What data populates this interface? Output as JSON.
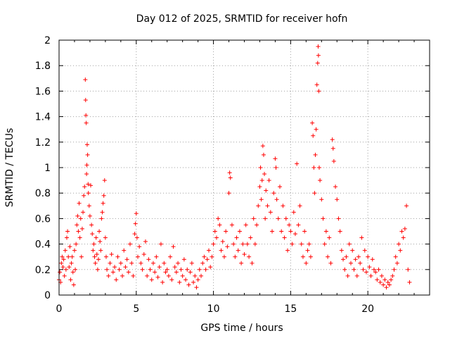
{
  "chart_data": {
    "type": "scatter",
    "title": "Day 012 of 2025, SRMTID for receiver hofn",
    "xlabel": "GPS time / hours",
    "ylabel": "SRMTID / TECUs",
    "xlim": [
      0,
      24
    ],
    "ylim": [
      0,
      2
    ],
    "xticks": [
      0,
      5,
      10,
      15,
      20
    ],
    "xtick_labels": [
      "0",
      "5",
      "10",
      "15",
      "20"
    ],
    "yticks": [
      0,
      0.2,
      0.4,
      0.6,
      0.8,
      1,
      1.2,
      1.4,
      1.6,
      1.8,
      2
    ],
    "ytick_labels": [
      "0",
      "0.2",
      "0.4",
      "0.6",
      "0.8",
      "1",
      "1.2",
      "1.4",
      "1.6",
      "1.8",
      "2"
    ],
    "grid": true,
    "marker": "plus",
    "color": "#ff0000",
    "series": [
      {
        "name": "SRMTID",
        "points": [
          [
            0.0,
            0.12
          ],
          [
            0.05,
            0.18
          ],
          [
            0.1,
            0.1
          ],
          [
            0.15,
            0.25
          ],
          [
            0.2,
            0.3
          ],
          [
            0.25,
            0.22
          ],
          [
            0.3,
            0.28
          ],
          [
            0.35,
            0.15
          ],
          [
            0.4,
            0.35
          ],
          [
            0.45,
            0.2
          ],
          [
            0.5,
            0.45
          ],
          [
            0.55,
            0.5
          ],
          [
            0.6,
            0.3
          ],
          [
            0.65,
            0.22
          ],
          [
            0.7,
            0.38
          ],
          [
            0.75,
            0.12
          ],
          [
            0.8,
            0.25
          ],
          [
            0.85,
            0.3
          ],
          [
            0.9,
            0.18
          ],
          [
            0.95,
            0.08
          ],
          [
            1.0,
            0.35
          ],
          [
            1.05,
            0.2
          ],
          [
            1.1,
            0.4
          ],
          [
            1.15,
            0.55
          ],
          [
            1.2,
            0.62
          ],
          [
            1.25,
            0.5
          ],
          [
            1.3,
            0.72
          ],
          [
            1.35,
            0.45
          ],
          [
            1.4,
            0.6
          ],
          [
            1.45,
            0.3
          ],
          [
            1.5,
            0.52
          ],
          [
            1.55,
            0.65
          ],
          [
            1.6,
            0.78
          ],
          [
            1.65,
            0.85
          ],
          [
            1.7,
            1.69
          ],
          [
            1.72,
            1.53
          ],
          [
            1.74,
            1.41
          ],
          [
            1.76,
            1.35
          ],
          [
            1.78,
            0.95
          ],
          [
            1.8,
            1.02
          ],
          [
            1.82,
            1.18
          ],
          [
            1.85,
            1.1
          ],
          [
            1.88,
            0.87
          ],
          [
            1.9,
            0.8
          ],
          [
            1.95,
            0.7
          ],
          [
            2.0,
            0.62
          ],
          [
            2.05,
            0.86
          ],
          [
            2.1,
            0.55
          ],
          [
            2.15,
            0.48
          ],
          [
            2.2,
            0.35
          ],
          [
            2.25,
            0.4
          ],
          [
            2.3,
            0.3
          ],
          [
            2.35,
            0.25
          ],
          [
            2.4,
            0.45
          ],
          [
            2.45,
            0.32
          ],
          [
            2.5,
            0.2
          ],
          [
            2.55,
            0.28
          ],
          [
            2.6,
            0.5
          ],
          [
            2.65,
            0.42
          ],
          [
            2.7,
            0.35
          ],
          [
            2.75,
            0.6
          ],
          [
            2.8,
            0.65
          ],
          [
            2.85,
            0.72
          ],
          [
            2.9,
            0.78
          ],
          [
            2.95,
            0.9
          ],
          [
            3.0,
            0.45
          ],
          [
            3.05,
            0.3
          ],
          [
            3.1,
            0.2
          ],
          [
            3.2,
            0.15
          ],
          [
            3.3,
            0.25
          ],
          [
            3.4,
            0.32
          ],
          [
            3.5,
            0.18
          ],
          [
            3.6,
            0.22
          ],
          [
            3.7,
            0.12
          ],
          [
            3.8,
            0.3
          ],
          [
            3.9,
            0.2
          ],
          [
            4.0,
            0.25
          ],
          [
            4.1,
            0.15
          ],
          [
            4.2,
            0.35
          ],
          [
            4.3,
            0.22
          ],
          [
            4.4,
            0.28
          ],
          [
            4.5,
            0.18
          ],
          [
            4.6,
            0.4
          ],
          [
            4.7,
            0.25
          ],
          [
            4.8,
            0.15
          ],
          [
            4.9,
            0.48
          ],
          [
            4.95,
            0.56
          ],
          [
            5.0,
            0.64
          ],
          [
            5.05,
            0.45
          ],
          [
            5.1,
            0.3
          ],
          [
            5.2,
            0.38
          ],
          [
            5.3,
            0.25
          ],
          [
            5.4,
            0.2
          ],
          [
            5.5,
            0.32
          ],
          [
            5.6,
            0.42
          ],
          [
            5.7,
            0.15
          ],
          [
            5.8,
            0.28
          ],
          [
            5.9,
            0.2
          ],
          [
            6.0,
            0.12
          ],
          [
            6.1,
            0.25
          ],
          [
            6.2,
            0.18
          ],
          [
            6.3,
            0.3
          ],
          [
            6.4,
            0.14
          ],
          [
            6.5,
            0.22
          ],
          [
            6.6,
            0.4
          ],
          [
            6.7,
            0.1
          ],
          [
            6.8,
            0.25
          ],
          [
            6.9,
            0.18
          ],
          [
            7.0,
            0.2
          ],
          [
            7.1,
            0.15
          ],
          [
            7.2,
            0.3
          ],
          [
            7.3,
            0.12
          ],
          [
            7.4,
            0.38
          ],
          [
            7.5,
            0.22
          ],
          [
            7.6,
            0.18
          ],
          [
            7.7,
            0.25
          ],
          [
            7.8,
            0.1
          ],
          [
            7.9,
            0.2
          ],
          [
            8.0,
            0.15
          ],
          [
            8.1,
            0.28
          ],
          [
            8.2,
            0.12
          ],
          [
            8.3,
            0.2
          ],
          [
            8.4,
            0.08
          ],
          [
            8.5,
            0.18
          ],
          [
            8.6,
            0.25
          ],
          [
            8.7,
            0.1
          ],
          [
            8.8,
            0.15
          ],
          [
            8.9,
            0.06
          ],
          [
            9.0,
            0.12
          ],
          [
            9.1,
            0.2
          ],
          [
            9.2,
            0.15
          ],
          [
            9.3,
            0.25
          ],
          [
            9.4,
            0.3
          ],
          [
            9.5,
            0.2
          ],
          [
            9.6,
            0.28
          ],
          [
            9.7,
            0.35
          ],
          [
            9.8,
            0.22
          ],
          [
            9.9,
            0.3
          ],
          [
            10.0,
            0.4
          ],
          [
            10.1,
            0.5
          ],
          [
            10.2,
            0.45
          ],
          [
            10.3,
            0.6
          ],
          [
            10.4,
            0.55
          ],
          [
            10.5,
            0.35
          ],
          [
            10.6,
            0.42
          ],
          [
            10.7,
            0.3
          ],
          [
            10.8,
            0.5
          ],
          [
            10.9,
            0.38
          ],
          [
            11.0,
            0.8
          ],
          [
            11.05,
            0.96
          ],
          [
            11.1,
            0.92
          ],
          [
            11.2,
            0.55
          ],
          [
            11.3,
            0.4
          ],
          [
            11.4,
            0.3
          ],
          [
            11.5,
            0.45
          ],
          [
            11.6,
            0.35
          ],
          [
            11.7,
            0.5
          ],
          [
            11.8,
            0.25
          ],
          [
            11.9,
            0.4
          ],
          [
            12.0,
            0.32
          ],
          [
            12.1,
            0.55
          ],
          [
            12.2,
            0.4
          ],
          [
            12.3,
            0.3
          ],
          [
            12.4,
            0.45
          ],
          [
            12.5,
            0.25
          ],
          [
            12.6,
            0.6
          ],
          [
            12.7,
            0.4
          ],
          [
            12.8,
            0.55
          ],
          [
            12.9,
            0.7
          ],
          [
            13.0,
            0.85
          ],
          [
            13.05,
            1.0
          ],
          [
            13.1,
            0.75
          ],
          [
            13.15,
            0.9
          ],
          [
            13.2,
            1.17
          ],
          [
            13.25,
            1.1
          ],
          [
            13.3,
            0.95
          ],
          [
            13.35,
            0.6
          ],
          [
            13.4,
            0.82
          ],
          [
            13.5,
            0.7
          ],
          [
            13.6,
            0.9
          ],
          [
            13.7,
            0.65
          ],
          [
            13.8,
            0.5
          ],
          [
            13.9,
            0.8
          ],
          [
            14.0,
            1.07
          ],
          [
            14.05,
            1.0
          ],
          [
            14.1,
            0.75
          ],
          [
            14.2,
            0.6
          ],
          [
            14.3,
            0.85
          ],
          [
            14.4,
            0.5
          ],
          [
            14.5,
            0.7
          ],
          [
            14.6,
            0.45
          ],
          [
            14.7,
            0.6
          ],
          [
            14.8,
            0.35
          ],
          [
            14.9,
            0.55
          ],
          [
            15.0,
            0.5
          ],
          [
            15.1,
            0.4
          ],
          [
            15.2,
            0.65
          ],
          [
            15.3,
            0.48
          ],
          [
            15.4,
            1.03
          ],
          [
            15.5,
            0.55
          ],
          [
            15.6,
            0.7
          ],
          [
            15.7,
            0.4
          ],
          [
            15.8,
            0.3
          ],
          [
            15.9,
            0.5
          ],
          [
            16.0,
            0.25
          ],
          [
            16.1,
            0.35
          ],
          [
            16.2,
            0.4
          ],
          [
            16.3,
            0.3
          ],
          [
            16.4,
            1.35
          ],
          [
            16.45,
            1.25
          ],
          [
            16.5,
            1.0
          ],
          [
            16.55,
            0.8
          ],
          [
            16.6,
            1.1
          ],
          [
            16.65,
            1.3
          ],
          [
            16.7,
            1.65
          ],
          [
            16.75,
            1.82
          ],
          [
            16.78,
            1.95
          ],
          [
            16.8,
            1.88
          ],
          [
            16.82,
            1.6
          ],
          [
            16.85,
            1.0
          ],
          [
            16.9,
            0.9
          ],
          [
            17.0,
            0.75
          ],
          [
            17.1,
            0.6
          ],
          [
            17.2,
            0.4
          ],
          [
            17.3,
            0.5
          ],
          [
            17.4,
            0.3
          ],
          [
            17.5,
            0.45
          ],
          [
            17.6,
            0.25
          ],
          [
            17.7,
            1.22
          ],
          [
            17.75,
            1.15
          ],
          [
            17.8,
            1.05
          ],
          [
            17.9,
            0.85
          ],
          [
            18.0,
            0.75
          ],
          [
            18.1,
            0.6
          ],
          [
            18.2,
            0.5
          ],
          [
            18.3,
            0.35
          ],
          [
            18.4,
            0.28
          ],
          [
            18.5,
            0.2
          ],
          [
            18.6,
            0.3
          ],
          [
            18.7,
            0.15
          ],
          [
            18.8,
            0.4
          ],
          [
            18.9,
            0.25
          ],
          [
            19.0,
            0.35
          ],
          [
            19.1,
            0.2
          ],
          [
            19.2,
            0.28
          ],
          [
            19.3,
            0.15
          ],
          [
            19.4,
            0.3
          ],
          [
            19.5,
            0.25
          ],
          [
            19.6,
            0.45
          ],
          [
            19.7,
            0.2
          ],
          [
            19.8,
            0.35
          ],
          [
            19.9,
            0.18
          ],
          [
            20.0,
            0.3
          ],
          [
            20.1,
            0.22
          ],
          [
            20.2,
            0.15
          ],
          [
            20.3,
            0.28
          ],
          [
            20.4,
            0.2
          ],
          [
            20.5,
            0.18
          ],
          [
            20.6,
            0.12
          ],
          [
            20.7,
            0.2
          ],
          [
            20.8,
            0.1
          ],
          [
            20.9,
            0.15
          ],
          [
            21.0,
            0.08
          ],
          [
            21.1,
            0.12
          ],
          [
            21.2,
            0.06
          ],
          [
            21.3,
            0.1
          ],
          [
            21.4,
            0.08
          ],
          [
            21.5,
            0.12
          ],
          [
            21.6,
            0.15
          ],
          [
            21.7,
            0.2
          ],
          [
            21.8,
            0.3
          ],
          [
            21.9,
            0.25
          ],
          [
            22.0,
            0.4
          ],
          [
            22.1,
            0.35
          ],
          [
            22.2,
            0.5
          ],
          [
            22.3,
            0.45
          ],
          [
            22.4,
            0.52
          ],
          [
            22.5,
            0.7
          ],
          [
            22.6,
            0.2
          ],
          [
            22.7,
            0.1
          ]
        ]
      }
    ]
  }
}
